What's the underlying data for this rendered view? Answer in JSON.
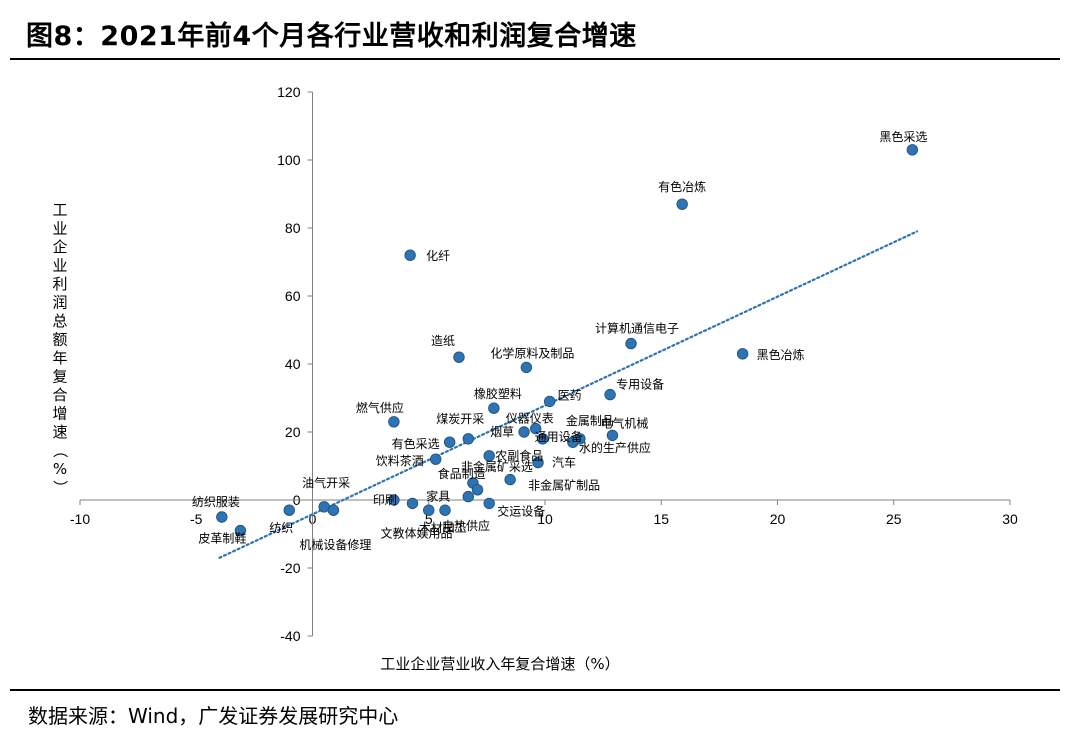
{
  "figure": {
    "title": "图8：2021年前4个月各行业营收和利润复合增速",
    "source": "数据来源：Wind，广发证券发展研究中心"
  },
  "chart_data": {
    "type": "scatter",
    "title": "2021年前4个月各行业营收和利润复合增速",
    "xlabel": "工业企业营业收入年复合增速（%）",
    "ylabel": "工业企业利润总额年复合增速（%）",
    "xlim": [
      -10,
      30
    ],
    "ylim": [
      -40,
      120
    ],
    "xticks": [
      -10,
      -5,
      0,
      5,
      10,
      15,
      20,
      25,
      30
    ],
    "yticks": [
      -40,
      -20,
      0,
      20,
      40,
      60,
      80,
      100,
      120
    ],
    "marker_color": "#2e74b5",
    "trendline": {
      "style": "dotted",
      "color": "#2e74b5",
      "x": [
        -4,
        26
      ],
      "y": [
        -17,
        79
      ]
    },
    "points": [
      {
        "label": "黑色采选",
        "x": 25.8,
        "y": 103
      },
      {
        "label": "有色冶炼",
        "x": 15.9,
        "y": 87
      },
      {
        "label": "化纤",
        "x": 4.2,
        "y": 72
      },
      {
        "label": "计算机通信电子",
        "x": 13.7,
        "y": 46
      },
      {
        "label": "黑色冶炼",
        "x": 18.5,
        "y": 43
      },
      {
        "label": "造纸",
        "x": 6.3,
        "y": 42
      },
      {
        "label": "化学原料及制品",
        "x": 9.2,
        "y": 39
      },
      {
        "label": "专用设备",
        "x": 12.8,
        "y": 31
      },
      {
        "label": "医药",
        "x": 10.2,
        "y": 29
      },
      {
        "label": "橡胶塑料",
        "x": 7.8,
        "y": 27
      },
      {
        "label": "燃气供应",
        "x": 3.5,
        "y": 23
      },
      {
        "label": "仪器仪表",
        "x": 9.6,
        "y": 21
      },
      {
        "label": "烟草",
        "x": 9.1,
        "y": 20
      },
      {
        "label": "电气机械",
        "x": 12.9,
        "y": 19
      },
      {
        "label": "煤炭开采",
        "x": 6.7,
        "y": 18
      },
      {
        "label": "金属制品",
        "x": 11.5,
        "y": 18
      },
      {
        "label": "通用设备",
        "x": 9.9,
        "y": 18
      },
      {
        "label": "有色采选",
        "x": 5.9,
        "y": 17
      },
      {
        "label": "水的生产供应",
        "x": 11.2,
        "y": 17
      },
      {
        "label": "农副食品",
        "x": 7.6,
        "y": 13
      },
      {
        "label": "饮料茶酒",
        "x": 5.3,
        "y": 12
      },
      {
        "label": "汽车",
        "x": 9.7,
        "y": 11
      },
      {
        "label": "非金属矿采选",
        "x": 6.9,
        "y": 5
      },
      {
        "label": "非金属矿制品",
        "x": 8.5,
        "y": 6
      },
      {
        "label": "食品制造",
        "x": 7.1,
        "y": 3
      },
      {
        "label": "家具",
        "x": 6.7,
        "y": 1
      },
      {
        "label": "印刷",
        "x": 3.5,
        "y": 0
      },
      {
        "label": "交运设备",
        "x": 7.6,
        "y": -1
      },
      {
        "label": "油气开采",
        "x": 0.5,
        "y": -2
      },
      {
        "label": "纺织服装",
        "x": -3.9,
        "y": -5
      },
      {
        "label": "纺织",
        "x": -1.0,
        "y": -3
      },
      {
        "label": "皮革制鞋",
        "x": -3.1,
        "y": -9
      },
      {
        "label": "机械设备修理",
        "x": 0.9,
        "y": -3
      },
      {
        "label": "文教体娱用品",
        "x": 4.3,
        "y": -1
      },
      {
        "label": "木材加工",
        "x": 5.0,
        "y": -3
      },
      {
        "label": "电热供应",
        "x": 5.7,
        "y": -3
      }
    ]
  }
}
